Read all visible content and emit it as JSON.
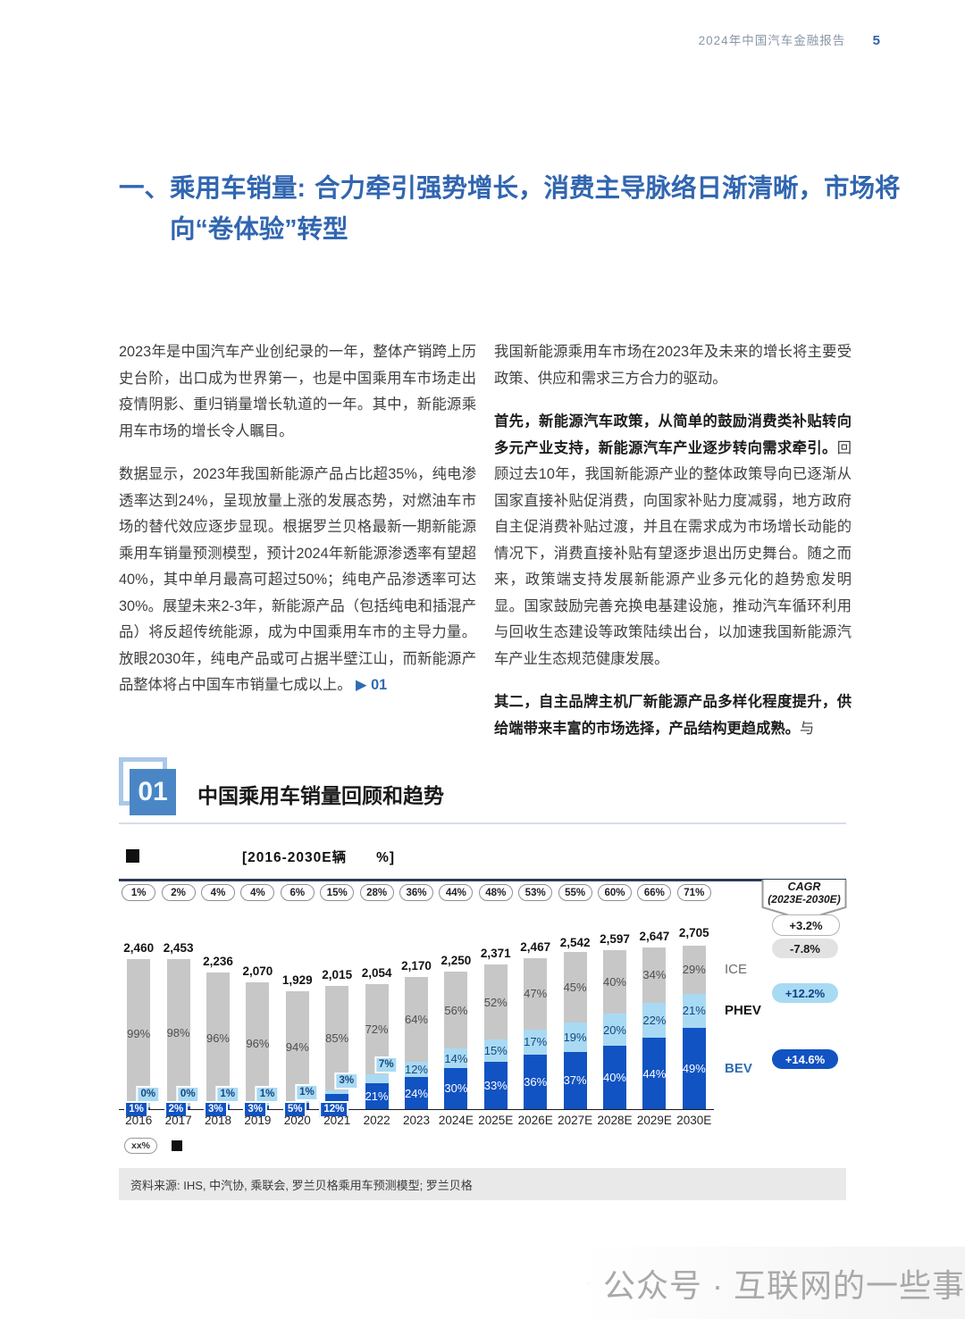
{
  "header": {
    "title": "2024年中国汽车金融报告",
    "page_number": "5"
  },
  "heading": {
    "lead": "一、乘用车销量:",
    "rest": "合力牵引强势增长，消费主导脉络日渐清晰，市场将向“卷体验”转型"
  },
  "article": {
    "left": [
      {
        "segments": [
          {
            "text": "2023年是中国汽车产业创纪录的一年，整体产销跨上历史台阶，出口成为世界第一，也是中国乘用车市场走出疫情阴影、重归销量增长轨道的一年。其中，新能源乘用车市场的增长令人瞩目。"
          }
        ]
      },
      {
        "segments": [
          {
            "text": "数据显示，2023年我国新能源产品占比超35%，纯电渗透率达到24%，呈现放量上涨的发展态势，对燃油车市场的替代效应逐步显现。根据罗兰贝格最新一期新能源乘用车销量预测模型，预计2024年新能源渗透率有望超40%，其中单月最高可超过50%；纯电产品渗透率可达30%。展望未来2-3年，新能源产品（包括纯电和插混产品）将反超传统能源，成为中国乘用车市的主导力量。放眼2030年，纯电产品或可占据半壁江山，而新能源产品整体将占中国车市销量七成以上。"
          },
          {
            "text": " ▶ 01",
            "link": true
          }
        ]
      }
    ],
    "right": [
      {
        "segments": [
          {
            "text": "我国新能源乘用车市场在2023年及未来的增长将主要受政策、供应和需求三方合力的驱动。"
          }
        ]
      },
      {
        "segments": [
          {
            "text": "首先，新能源汽车政策，从简单的鼓励消费类补贴转向多元产业支持，新能源汽车产业逐步转向需求牵引。",
            "bold": true
          },
          {
            "text": "回顾过去10年，我国新能源产业的整体政策导向已逐渐从国家直接补贴促消费，向国家补贴力度减弱，地方政府自主促消费补贴过渡，并且在需求成为市场增长动能的情况下，消费直接补贴有望逐步退出历史舞台。随之而来，政策端支持发展新能源产业多元化的趋势愈发明显。国家鼓励完善充换电基建设施，推动汽车循环利用与回收生态建设等政策陆续出台，以加速我国新能源汽车产业生态规范健康发展。"
          }
        ]
      },
      {
        "segments": [
          {
            "text": "其二，自主品牌主机厂新能源产品多样化程度提升，供给端带来丰富的市场选择，产品结构更趋成熟。",
            "bold": true
          },
          {
            "text": "与"
          }
        ]
      }
    ]
  },
  "exhibit": {
    "number": "01",
    "title": "中国乘用车销量回顾和趋势"
  },
  "chart_data": {
    "type": "bar",
    "stacked": true,
    "title_marker": "■",
    "title": "[2016-2030E辆　　%]",
    "categories": [
      "2016",
      "2017",
      "2018",
      "2019",
      "2020",
      "2021",
      "2022",
      "2023",
      "2024E",
      "2025E",
      "2026E",
      "2027E",
      "2028E",
      "2029E",
      "2030E"
    ],
    "totals_label": [
      "2,460",
      "2,453",
      "2,236",
      "2,070",
      "1,929",
      "2,015",
      "2,054",
      "2,170",
      "2,250",
      "2,371",
      "2,467",
      "2,542",
      "2,597",
      "2,647",
      "2,705"
    ],
    "totals": [
      2460,
      2453,
      2236,
      2070,
      1929,
      2015,
      2054,
      2170,
      2250,
      2371,
      2467,
      2542,
      2597,
      2647,
      2705
    ],
    "nev_share_pills": [
      "1%",
      "2%",
      "4%",
      "4%",
      "6%",
      "15%",
      "28%",
      "36%",
      "44%",
      "48%",
      "53%",
      "55%",
      "60%",
      "66%",
      "71%"
    ],
    "series": [
      {
        "name": "BEV",
        "color": "#1153c2",
        "label_color": "#ffffff",
        "values": [
          1,
          2,
          3,
          3,
          5,
          12,
          21,
          24,
          30,
          33,
          36,
          37,
          40,
          44,
          49
        ]
      },
      {
        "name": "PHEV",
        "color": "#a9daf3",
        "label_color": "#16467e",
        "values": [
          0,
          0,
          1,
          1,
          1,
          3,
          7,
          12,
          14,
          15,
          17,
          19,
          20,
          22,
          21
        ]
      },
      {
        "name": "ICE",
        "color": "#c7c7c7",
        "label_color": "#4f4f4f",
        "values": [
          99,
          98,
          96,
          96,
          94,
          85,
          72,
          64,
          56,
          52,
          47,
          45,
          40,
          34,
          29
        ]
      }
    ],
    "legend": [
      {
        "label": "ICE",
        "color": "#6b6b6b",
        "bold": false
      },
      {
        "label": "PHEV",
        "color": "#111111",
        "bold": true
      },
      {
        "label": "BEV",
        "color": "#2f6cb3",
        "bold": true
      }
    ],
    "cagr": {
      "title_line1": "CAGR",
      "title_line2": "(2023E-2030E)",
      "items": [
        {
          "value": "+3.2%",
          "style": "white"
        },
        {
          "value": "-7.8%",
          "style": "gray"
        },
        {
          "value": "+12.2%",
          "style": "lightblue"
        },
        {
          "value": "+14.6%",
          "style": "darkblue"
        }
      ]
    },
    "footnote": {
      "pill": "xx%",
      "square": "■"
    },
    "ylim": [
      0,
      2705
    ],
    "grid": false
  },
  "source": "资料来源: IHS, 中汽协, 乘联会, 罗兰贝格乘用车预测模型; 罗兰贝格",
  "watermark": {
    "icon": "wechat-icon",
    "text": "公众号 · 互联网的一些事"
  },
  "colors": {
    "accent_blue": "#3166b0",
    "bar_blue": "#1153c2",
    "bar_lightblue": "#a9daf3",
    "bar_gray": "#c7c7c7"
  }
}
